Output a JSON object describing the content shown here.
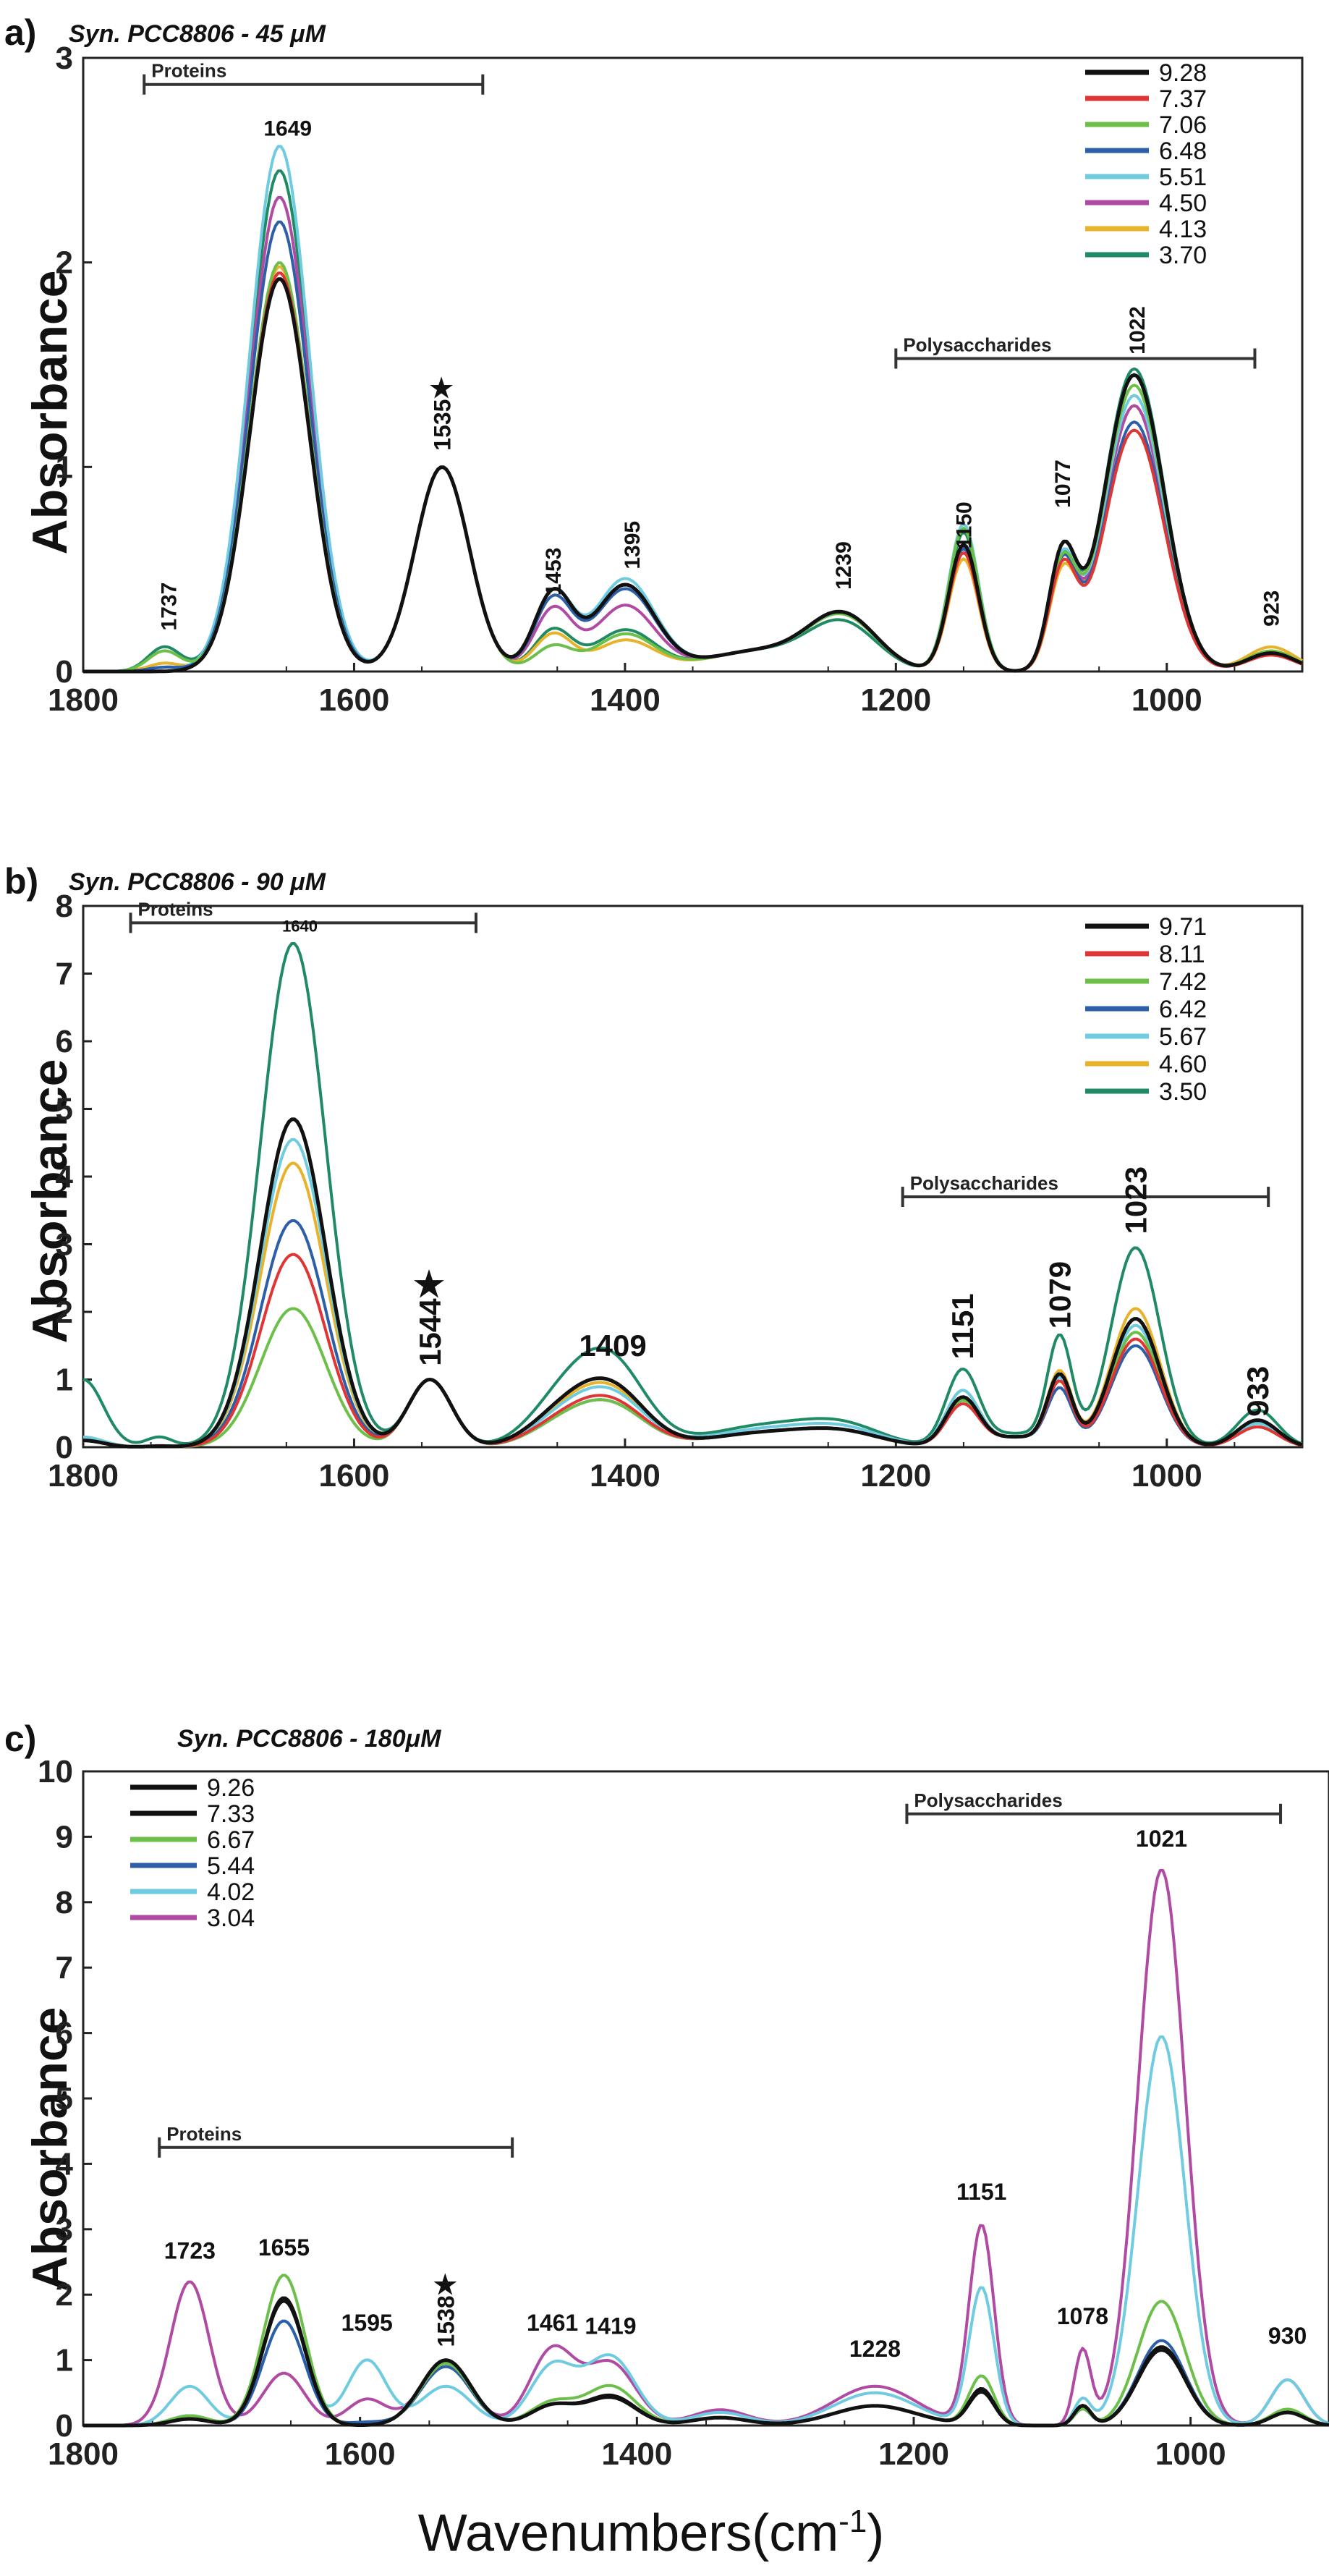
{
  "figure": {
    "xlabel": "Wavenumbers(cm",
    "xlabel_sup": "-1",
    "xlabel_close": ")",
    "ylabel": "Absorbance",
    "star_glyph": "★"
  },
  "chart_data": [
    {
      "type": "line",
      "panel_label": "a)",
      "title": "Syn. PCC8806 - 45 μM",
      "xlabel": "",
      "ylabel": "Absorbance",
      "xlim": [
        1800,
        900
      ],
      "ylim": [
        0,
        3
      ],
      "xticks": [
        1800,
        1600,
        1400,
        1200,
        1000
      ],
      "yticks": [
        0,
        1,
        2,
        3
      ],
      "legend_position": "top-right",
      "brackets": [
        {
          "label": "Proteins",
          "from": 1755,
          "to": 1505,
          "y": 2.87
        },
        {
          "label": "Polysaccharides",
          "from": 1200,
          "to": 935,
          "y": 1.53
        }
      ],
      "annotations": [
        {
          "label": "1649",
          "x": 1649,
          "y": 2.62,
          "rotate": false,
          "size": "small"
        },
        {
          "label": "1535",
          "x": 1535,
          "y": 1.08,
          "rotate": true,
          "star": true,
          "size": "medium"
        },
        {
          "label": "1737",
          "x": 1737,
          "y": 0.2,
          "rotate": true,
          "size": "small"
        },
        {
          "label": "1453",
          "x": 1453,
          "y": 0.37,
          "rotate": true,
          "size": "small"
        },
        {
          "label": "1395",
          "x": 1395,
          "y": 0.5,
          "rotate": true,
          "size": "small"
        },
        {
          "label": "1239",
          "x": 1239,
          "y": 0.4,
          "rotate": true,
          "size": "small"
        },
        {
          "label": "1150",
          "x": 1150,
          "y": 0.6,
          "rotate": true,
          "size": "small"
        },
        {
          "label": "1077",
          "x": 1077,
          "y": 0.8,
          "rotate": true,
          "size": "small"
        },
        {
          "label": "1022",
          "x": 1022,
          "y": 1.55,
          "rotate": true,
          "size": "small"
        },
        {
          "label": "923",
          "x": 923,
          "y": 0.22,
          "rotate": true,
          "size": "small"
        }
      ],
      "series": [
        {
          "name": "9.28",
          "color": "#111111",
          "p": [
            1.92,
            0.0,
            0.38,
            0.42,
            0.26,
            1.45,
            0.62,
            0.55,
            0.09
          ]
        },
        {
          "name": "7.37",
          "color": "#e03535",
          "p": [
            1.95,
            0.0,
            0.38,
            0.42,
            0.26,
            1.18,
            0.58,
            0.48,
            0.08
          ]
        },
        {
          "name": "7.06",
          "color": "#6cc04a",
          "p": [
            2.0,
            0.1,
            0.12,
            0.18,
            0.25,
            1.4,
            0.7,
            0.5,
            0.1
          ]
        },
        {
          "name": "6.48",
          "color": "#2c5fa8",
          "p": [
            2.2,
            0.02,
            0.35,
            0.4,
            0.26,
            1.22,
            0.6,
            0.5,
            0.09
          ]
        },
        {
          "name": "5.51",
          "color": "#6fcce0",
          "p": [
            2.57,
            0.02,
            0.38,
            0.45,
            0.25,
            1.35,
            0.72,
            0.52,
            0.09
          ]
        },
        {
          "name": "4.50",
          "color": "#b04aa3",
          "p": [
            2.32,
            0.02,
            0.3,
            0.32,
            0.26,
            1.3,
            0.6,
            0.5,
            0.09
          ]
        },
        {
          "name": "4.13",
          "color": "#e8b22a",
          "p": [
            1.98,
            0.04,
            0.18,
            0.15,
            0.25,
            1.3,
            0.55,
            0.45,
            0.12
          ]
        },
        {
          "name": "3.70",
          "color": "#1f8a63",
          "p": [
            2.45,
            0.12,
            0.2,
            0.2,
            0.22,
            1.48,
            0.68,
            0.5,
            0.1
          ]
        }
      ]
    },
    {
      "type": "line",
      "panel_label": "b)",
      "title": "Syn. PCC8806 - 90 μM",
      "xlabel": "",
      "ylabel": "Absorbance",
      "xlim": [
        1800,
        900
      ],
      "ylim": [
        0,
        8
      ],
      "xticks": [
        1800,
        1600,
        1400,
        1200,
        1000
      ],
      "yticks": [
        0,
        1,
        2,
        3,
        4,
        5,
        6,
        7,
        8
      ],
      "legend_position": "top-right",
      "brackets": [
        {
          "label": "Proteins",
          "from": 1765,
          "to": 1510,
          "y": 7.75
        },
        {
          "label": "Polysaccharides",
          "from": 1195,
          "to": 925,
          "y": 3.7
        }
      ],
      "annotations": [
        {
          "label": "1640",
          "x": 1640,
          "y": 7.62,
          "rotate": false,
          "size": "tiny"
        },
        {
          "label": "1544",
          "x": 1544,
          "y": 1.2,
          "rotate": true,
          "star": true,
          "size": "large"
        },
        {
          "label": "1409",
          "x": 1409,
          "y": 1.35,
          "rotate": false,
          "size": "large"
        },
        {
          "label": "1151",
          "x": 1151,
          "y": 1.3,
          "rotate": true,
          "size": "large"
        },
        {
          "label": "1079",
          "x": 1079,
          "y": 1.75,
          "rotate": true,
          "size": "large"
        },
        {
          "label": "1023",
          "x": 1023,
          "y": 3.15,
          "rotate": true,
          "size": "large"
        },
        {
          "label": "933",
          "x": 933,
          "y": 0.45,
          "rotate": true,
          "size": "large"
        }
      ],
      "series": [
        {
          "name": "9.71",
          "color": "#111111",
          "p": [
            4.85,
            0.1,
            0.8,
            0.2,
            0.7,
            1.9,
            1.0,
            0.15,
            0.4
          ]
        },
        {
          "name": "8.11",
          "color": "#e03535",
          "p": [
            2.85,
            0.1,
            0.6,
            0.2,
            0.6,
            1.6,
            0.9,
            0.15,
            0.3
          ]
        },
        {
          "name": "7.42",
          "color": "#6cc04a",
          "p": [
            2.05,
            0.1,
            0.55,
            0.2,
            0.65,
            1.7,
            0.9,
            0.15,
            0.3
          ]
        },
        {
          "name": "6.42",
          "color": "#2c5fa8",
          "p": [
            3.35,
            0.1,
            0.55,
            0.2,
            0.65,
            1.5,
            0.8,
            0.15,
            0.3
          ]
        },
        {
          "name": "5.67",
          "color": "#6fcce0",
          "p": [
            4.55,
            0.15,
            0.7,
            0.25,
            0.8,
            1.8,
            0.95,
            0.15,
            0.35
          ]
        },
        {
          "name": "4.60",
          "color": "#e8b22a",
          "p": [
            4.2,
            0.15,
            0.75,
            0.2,
            0.8,
            2.05,
            1.05,
            0.15,
            0.35
          ]
        },
        {
          "name": "3.50",
          "color": "#1f8a63",
          "p": [
            7.45,
            1.0,
            1.15,
            0.3,
            1.1,
            2.95,
            1.55,
            0.2,
            0.55
          ]
        }
      ]
    },
    {
      "type": "line",
      "panel_label": "c)",
      "title": "Syn. PCC8806 - 180μM",
      "xlabel": "Wavenumbers(cm-1)",
      "ylabel": "Absorbance",
      "xlim": [
        1800,
        900
      ],
      "ylim": [
        0,
        10
      ],
      "xticks": [
        1800,
        1600,
        1400,
        1200,
        1000
      ],
      "yticks": [
        0,
        1,
        2,
        3,
        4,
        5,
        6,
        7,
        8,
        9,
        10
      ],
      "legend_position": "top-left",
      "brackets": [
        {
          "label": "Proteins",
          "from": 1745,
          "to": 1490,
          "y": 4.25
        },
        {
          "label": "Polysaccharides",
          "from": 1205,
          "to": 935,
          "y": 9.35
        }
      ],
      "annotations": [
        {
          "label": "1723",
          "x": 1723,
          "y": 2.55,
          "rotate": false,
          "size": "medium"
        },
        {
          "label": "1655",
          "x": 1655,
          "y": 2.6,
          "rotate": false,
          "size": "medium"
        },
        {
          "label": "1595",
          "x": 1595,
          "y": 1.45,
          "rotate": false,
          "size": "medium"
        },
        {
          "label": "1538",
          "x": 1538,
          "y": 1.2,
          "rotate": true,
          "star": true,
          "size": "medium"
        },
        {
          "label": "1461",
          "x": 1461,
          "y": 1.45,
          "rotate": false,
          "size": "medium"
        },
        {
          "label": "1419",
          "x": 1419,
          "y": 1.4,
          "rotate": false,
          "size": "medium"
        },
        {
          "label": "1228",
          "x": 1228,
          "y": 1.05,
          "rotate": false,
          "size": "medium"
        },
        {
          "label": "1151",
          "x": 1151,
          "y": 3.45,
          "rotate": false,
          "size": "medium"
        },
        {
          "label": "1078",
          "x": 1078,
          "y": 1.55,
          "rotate": false,
          "size": "medium"
        },
        {
          "label": "1021",
          "x": 1021,
          "y": 8.85,
          "rotate": false,
          "size": "medium"
        },
        {
          "label": "930",
          "x": 930,
          "y": 1.25,
          "rotate": false,
          "size": "medium"
        }
      ],
      "series": [
        {
          "name": "9.26",
          "color": "#111111",
          "p": [
            0.1,
            1.95,
            0.0,
            1.0,
            0.3,
            0.45,
            0.3,
            0.55,
            0.3,
            1.2,
            0.2
          ]
        },
        {
          "name": "7.33",
          "color": "#111111",
          "p": [
            0.1,
            1.9,
            0.0,
            1.0,
            0.3,
            0.42,
            0.3,
            0.5,
            0.3,
            1.15,
            0.2
          ]
        },
        {
          "name": "6.67",
          "color": "#6cc04a",
          "p": [
            0.15,
            2.3,
            0.0,
            0.95,
            0.35,
            0.6,
            0.3,
            0.75,
            0.25,
            1.9,
            0.25
          ]
        },
        {
          "name": "5.44",
          "color": "#2c5fa8",
          "p": [
            0.15,
            1.6,
            0.05,
            0.9,
            0.3,
            0.45,
            0.3,
            0.55,
            0.25,
            1.3,
            0.2
          ]
        },
        {
          "name": "4.02",
          "color": "#6fcce0",
          "p": [
            0.6,
            1.6,
            1.0,
            0.6,
            0.9,
            1.05,
            0.5,
            2.1,
            0.4,
            5.95,
            0.7
          ]
        },
        {
          "name": "3.04",
          "color": "#b04aa3",
          "p": [
            2.2,
            0.8,
            0.4,
            0.95,
            1.15,
            0.95,
            0.6,
            3.05,
            1.15,
            8.5,
            0.7
          ]
        }
      ]
    }
  ]
}
